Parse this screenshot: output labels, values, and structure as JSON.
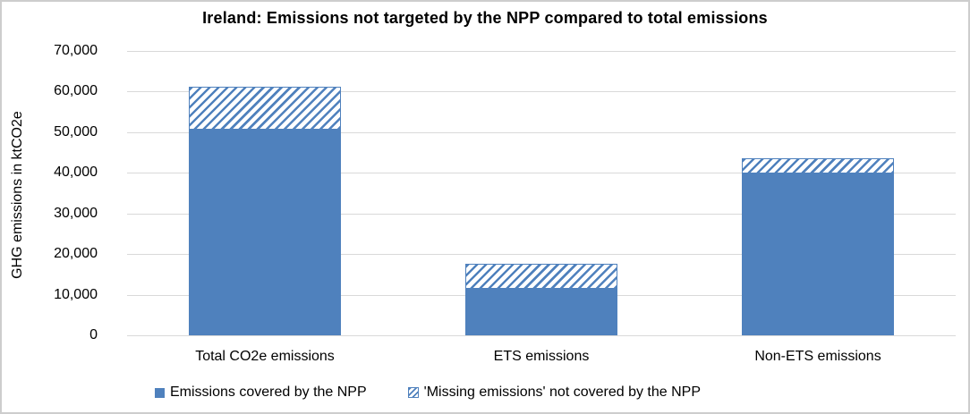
{
  "title": "Ireland: Emissions not targeted by the NPP compared to total emissions",
  "y_axis": {
    "label": "GHG emissions in ktCO2e",
    "tick_labels": [
      "70,000",
      "60,000",
      "50,000",
      "40,000",
      "30,000",
      "20,000",
      "10,000",
      "0"
    ]
  },
  "legend": {
    "covered_label": "Emissions covered by the NPP",
    "missing_label": "'Missing emissions' not covered by the NPP"
  },
  "colors": {
    "bar_blue": "#4f81bd",
    "gridline": "#d9d9d9",
    "figure_border": "#cdcdcd",
    "text": "#000000"
  },
  "chart_data": {
    "type": "bar",
    "stacked": true,
    "title": "Ireland: Emissions not targeted by the NPP compared to total emissions",
    "categories": [
      "Total CO2e emissions",
      "ETS emissions",
      "Non-ETS emissions"
    ],
    "series": [
      {
        "name": "Emissions covered by the NPP",
        "style": "solid",
        "color": "#4f81bd",
        "values": [
          50600,
          11400,
          39900
        ]
      },
      {
        "name": "'Missing emissions' not covered by the NPP",
        "style": "hatched",
        "color": "#4f81bd",
        "values": [
          10600,
          6200,
          3700
        ]
      }
    ],
    "xlabel": "",
    "ylabel": "GHG emissions in ktCO2e",
    "ylim": [
      0,
      70000
    ],
    "ytick_step": 10000,
    "grid": true,
    "legend_position": "bottom"
  }
}
